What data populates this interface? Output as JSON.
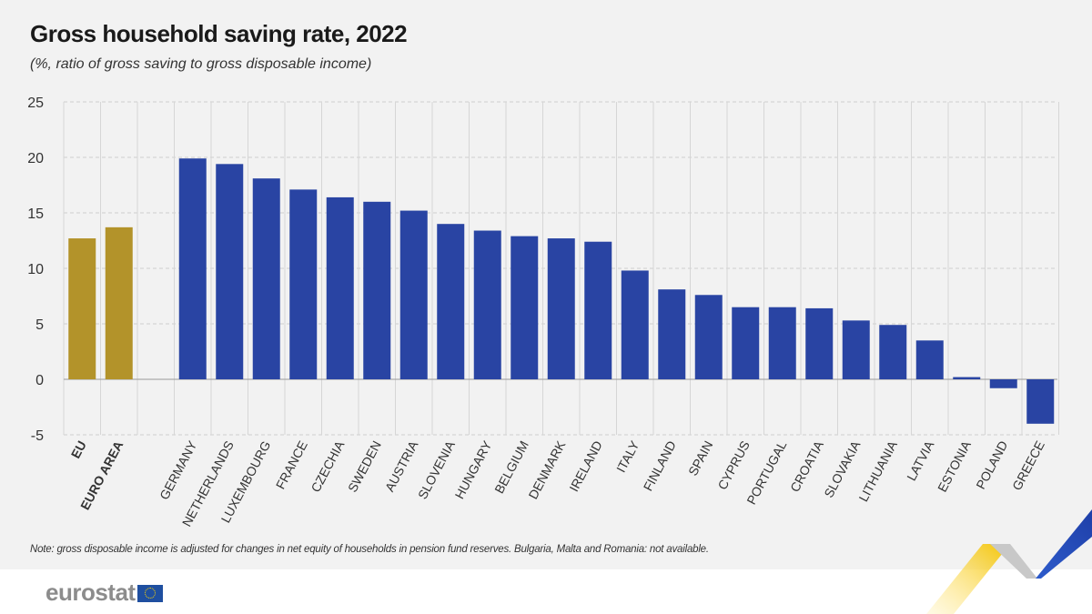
{
  "header": {
    "title": "Gross household saving rate, 2022",
    "subtitle": "(%, ratio of gross saving to gross disposable income)"
  },
  "note": "Note: gross disposable income is adjusted for changes in net equity of households in pension fund reserves. Bulgaria, Malta and Romania: not available.",
  "logo": {
    "text": "eurostat",
    "icon": "eu-flag-icon"
  },
  "colors": {
    "aggregate": "#b3932a",
    "country": "#2944a3",
    "background": "#f2f2f2"
  },
  "chart_data": {
    "type": "bar",
    "title": "Gross household saving rate, 2022",
    "subtitle": "(%, ratio of gross saving to gross disposable income)",
    "ylim": [
      -5,
      25
    ],
    "yticks": [
      -5,
      0,
      5,
      10,
      15,
      20,
      25
    ],
    "grid": true,
    "categories": [
      "EU",
      "EURO AREA",
      "GERMANY",
      "NETHERLANDS",
      "LUXEMBOURG",
      "FRANCE",
      "CZECHIA",
      "SWEDEN",
      "AUSTRIA",
      "SLOVENIA",
      "HUNGARY",
      "BELGIUM",
      "DENMARK",
      "IRELAND",
      "ITALY",
      "FINLAND",
      "SPAIN",
      "CYPRUS",
      "PORTUGAL",
      "CROATIA",
      "SLOVAKIA",
      "LITHUANIA",
      "LATVIA",
      "ESTONIA",
      "POLAND",
      "GREECE"
    ],
    "values": [
      12.7,
      13.7,
      19.9,
      19.4,
      18.1,
      17.1,
      16.4,
      16.0,
      15.2,
      14.0,
      13.4,
      12.9,
      12.7,
      12.4,
      9.8,
      8.1,
      7.6,
      6.5,
      6.5,
      6.4,
      5.3,
      4.9,
      3.5,
      0.2,
      -0.8,
      -4.0
    ],
    "aggregates": [
      "EU",
      "EURO AREA"
    ]
  }
}
